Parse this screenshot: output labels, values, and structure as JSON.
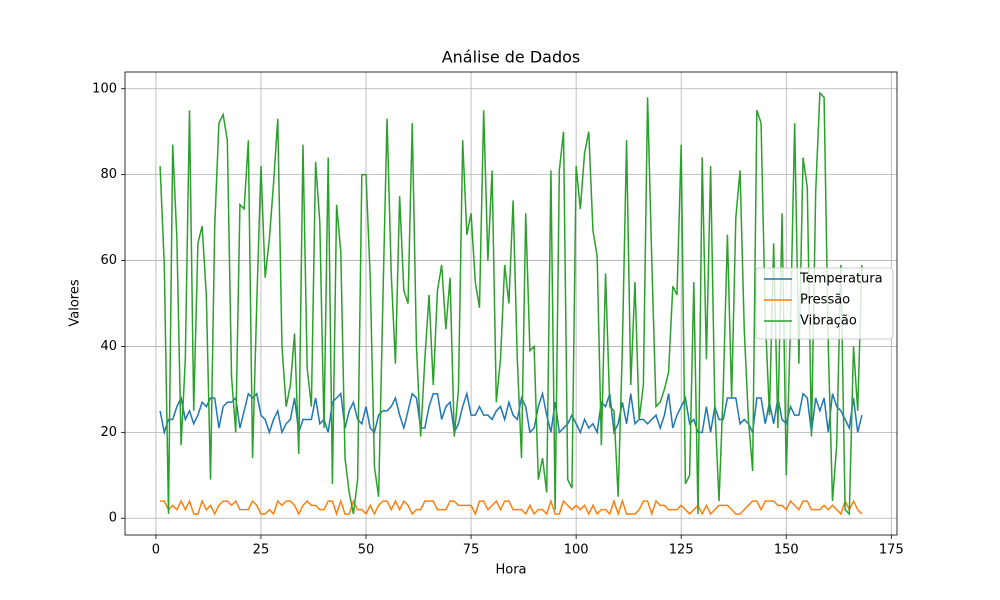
{
  "chart_data": {
    "type": "line",
    "title": "Análise de Dados",
    "xlabel": "Hora",
    "ylabel": "Valores",
    "x": [
      1,
      2,
      3,
      4,
      5,
      6,
      7,
      8,
      9,
      10,
      11,
      12,
      13,
      14,
      15,
      16,
      17,
      18,
      19,
      20,
      21,
      22,
      23,
      24,
      25,
      26,
      27,
      28,
      29,
      30,
      31,
      32,
      33,
      34,
      35,
      36,
      37,
      38,
      39,
      40,
      41,
      42,
      43,
      44,
      45,
      46,
      47,
      48,
      49,
      50,
      51,
      52,
      53,
      54,
      55,
      56,
      57,
      58,
      59,
      60,
      61,
      62,
      63,
      64,
      65,
      66,
      67,
      68,
      69,
      70,
      71,
      72,
      73,
      74,
      75,
      76,
      77,
      78,
      79,
      80,
      81,
      82,
      83,
      84,
      85,
      86,
      87,
      88,
      89,
      90,
      91,
      92,
      93,
      94,
      95,
      96,
      97,
      98,
      99,
      100,
      101,
      102,
      103,
      104,
      105,
      106,
      107,
      108,
      109,
      110,
      111,
      112,
      113,
      114,
      115,
      116,
      117,
      118,
      119,
      120,
      121,
      122,
      123,
      124,
      125,
      126,
      127,
      128,
      129,
      130,
      131,
      132,
      133,
      134,
      135,
      136,
      137,
      138,
      139,
      140,
      141,
      142,
      143,
      144,
      145,
      146,
      147,
      148,
      149,
      150,
      151,
      152,
      153,
      154,
      155,
      156,
      157,
      158,
      159,
      160,
      161,
      162,
      163,
      164,
      165,
      166,
      167,
      168
    ],
    "series": [
      {
        "name": "Temperatura",
        "color": "#1f77b4",
        "values": [
          25,
          20,
          23,
          23,
          26,
          28,
          23,
          25,
          22,
          24,
          27,
          26,
          28,
          28,
          21,
          26,
          27,
          27,
          28,
          21,
          25,
          29,
          28,
          29,
          24,
          23,
          20,
          23,
          25,
          20,
          22,
          23,
          28,
          20,
          23,
          23,
          23,
          28,
          22,
          23,
          20,
          27,
          28,
          29,
          21,
          25,
          27,
          23,
          22,
          26,
          21,
          20,
          24,
          25,
          25,
          26,
          28,
          24,
          21,
          25,
          29,
          28,
          21,
          21,
          26,
          29,
          29,
          23,
          26,
          27,
          20,
          22,
          26,
          29,
          24,
          24,
          26,
          24,
          24,
          23,
          25,
          26,
          23,
          27,
          24,
          23,
          28,
          26,
          20,
          21,
          26,
          29,
          24,
          20,
          27,
          20,
          21,
          22,
          24,
          22,
          20,
          23,
          21,
          22,
          20,
          27,
          26,
          29,
          20,
          22,
          27,
          22,
          29,
          22,
          23,
          23,
          22,
          23,
          24,
          21,
          24,
          29,
          21,
          24,
          26,
          28,
          22,
          23,
          20,
          20,
          26,
          20,
          26,
          23,
          23,
          28,
          28,
          28,
          22,
          23,
          22,
          20,
          28,
          28,
          22,
          27,
          22,
          28,
          23,
          22,
          26,
          24,
          24,
          29,
          28,
          20,
          28,
          25,
          28,
          20,
          29,
          26,
          25,
          23,
          21,
          28,
          20,
          24
        ]
      },
      {
        "name": "Pressão",
        "color": "#ff7f0e",
        "values": [
          4,
          4,
          2,
          3,
          2,
          4,
          2,
          4,
          1,
          1,
          4,
          2,
          3,
          1,
          3,
          4,
          4,
          3,
          4,
          2,
          2,
          2,
          4,
          3,
          1,
          1,
          2,
          1,
          4,
          3,
          4,
          4,
          3,
          1,
          3,
          4,
          3,
          3,
          2,
          2,
          4,
          4,
          1,
          4,
          1,
          1,
          4,
          2,
          2,
          1,
          3,
          1,
          3,
          4,
          4,
          2,
          4,
          2,
          4,
          3,
          1,
          2,
          2,
          4,
          4,
          4,
          2,
          2,
          2,
          4,
          4,
          3,
          3,
          3,
          3,
          1,
          4,
          4,
          2,
          3,
          4,
          2,
          4,
          4,
          2,
          2,
          2,
          1,
          3,
          1,
          2,
          2,
          1,
          4,
          1,
          1,
          4,
          3,
          2,
          3,
          2,
          3,
          1,
          3,
          1,
          2,
          2,
          1,
          4,
          1,
          4,
          1,
          1,
          1,
          2,
          4,
          4,
          1,
          4,
          3,
          3,
          2,
          2,
          2,
          3,
          2,
          1,
          2,
          3,
          1,
          3,
          1,
          2,
          3,
          3,
          3,
          2,
          1,
          1,
          2,
          3,
          4,
          4,
          2,
          4,
          4,
          4,
          3,
          3,
          2,
          4,
          3,
          2,
          4,
          4,
          2,
          2,
          2,
          3,
          2,
          3,
          2,
          1,
          4,
          2,
          4,
          2,
          1
        ]
      },
      {
        "name": "Vibração",
        "color": "#2ca02c",
        "values": [
          82,
          59,
          1,
          87,
          65,
          17,
          37,
          95,
          25,
          64,
          68,
          52,
          9,
          68,
          92,
          94,
          88,
          33,
          20,
          73,
          72,
          88,
          14,
          50,
          82,
          56,
          65,
          78,
          93,
          40,
          26,
          31,
          43,
          15,
          87,
          35,
          26,
          83,
          69,
          21,
          84,
          8,
          73,
          62,
          14,
          6,
          1,
          9,
          80,
          80,
          56,
          12,
          5,
          50,
          93,
          57,
          36,
          75,
          53,
          50,
          92,
          40,
          19,
          37,
          52,
          31,
          53,
          59,
          44,
          56,
          19,
          30,
          88,
          66,
          71,
          55,
          49,
          95,
          60,
          81,
          27,
          37,
          59,
          50,
          74,
          37,
          14,
          71,
          39,
          40,
          9,
          14,
          6,
          81,
          2,
          81,
          90,
          9,
          7,
          82,
          72,
          85,
          90,
          67,
          61,
          17,
          57,
          26,
          25,
          5,
          40,
          88,
          31,
          55,
          23,
          31,
          98,
          60,
          26,
          27,
          30,
          34,
          54,
          52,
          87,
          8,
          10,
          55,
          1,
          84,
          37,
          82,
          26,
          4,
          30,
          66,
          28,
          70,
          81,
          44,
          23,
          11,
          95,
          92,
          47,
          24,
          64,
          21,
          71,
          10,
          45,
          92,
          36,
          84,
          77,
          19,
          76,
          99,
          98,
          40,
          4,
          17,
          59,
          2,
          1,
          40,
          25,
          59
        ]
      }
    ],
    "xlim": [
      -7.35,
      176.35
    ],
    "xticks": [
      0,
      25,
      50,
      75,
      100,
      125,
      150,
      175
    ],
    "ylim": [
      -3.9,
      103.9
    ],
    "yticks": [
      0,
      20,
      40,
      60,
      80,
      100
    ],
    "grid": true,
    "legend": "center right"
  }
}
